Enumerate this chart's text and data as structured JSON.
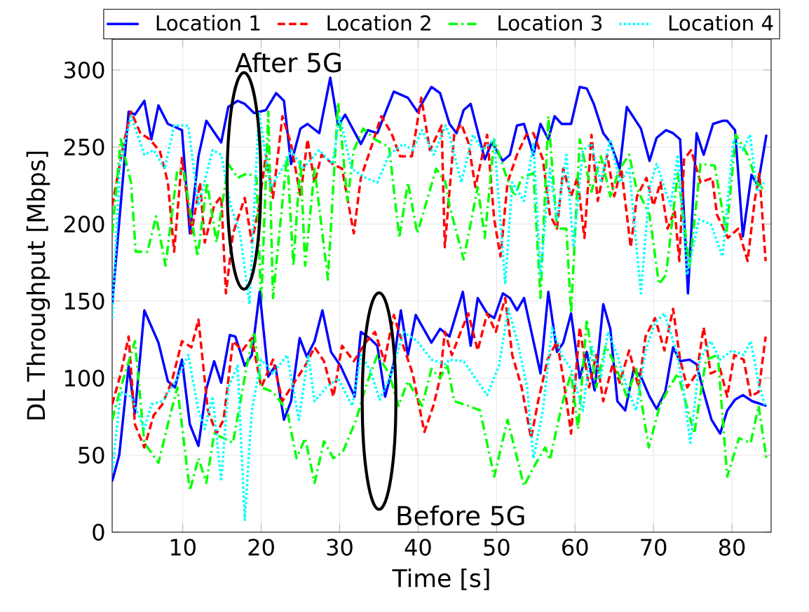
{
  "chart_data": {
    "type": "line",
    "xlabel": "Time [s]",
    "ylabel": "DL Throughput [Mbps]",
    "xlim": [
      1,
      85
    ],
    "ylim": [
      0,
      320
    ],
    "xticks": [
      10,
      20,
      30,
      40,
      50,
      60,
      70,
      80
    ],
    "yticks": [
      0,
      50,
      100,
      150,
      200,
      250,
      300
    ],
    "grid": true,
    "legend": "top",
    "marker": "none",
    "annotations": [
      "After 5G",
      "Before 5G"
    ],
    "series": [
      {
        "name": "Location 1",
        "color": "#0000ff",
        "line_style": "solid",
        "x": [
          1,
          3.1,
          3.9,
          5.1,
          6.0,
          6.9,
          8.1,
          9.9,
          10.9,
          12,
          13,
          14.9,
          15.8,
          17,
          17.9,
          19.1,
          20.6,
          21.9,
          22.9,
          23.8,
          25,
          25.9,
          27.4,
          28.8,
          29.8,
          30.7,
          32.7,
          33.6,
          34.8,
          36.9,
          38.7,
          39.9,
          41.7,
          42.8,
          44,
          44.9,
          45.8,
          46.7,
          48.5,
          49.4,
          50.8,
          51.7,
          52.6,
          53.5,
          54.7,
          55.6,
          56.6,
          57.4,
          58.3,
          59.5,
          60.6,
          61.5,
          62.4,
          63.6,
          64.5,
          65.7,
          66.6,
          68.4,
          69.5,
          70.4,
          71.6,
          72.5,
          73.4,
          74.4,
          75.5,
          76.4,
          77.6,
          78.8,
          79.4,
          80.4,
          81.4,
          82.5,
          83.3,
          84.4
        ],
        "values": [
          148,
          273,
          271,
          280,
          255,
          277,
          265,
          261,
          194,
          244,
          267,
          253,
          276,
          280,
          278,
          272,
          274,
          285,
          280,
          239,
          262,
          265,
          259,
          295,
          264,
          271,
          252,
          261,
          259,
          286,
          282,
          273,
          289,
          285,
          265,
          259,
          274,
          278,
          242,
          253,
          241,
          245,
          264,
          265,
          245,
          265,
          255,
          270,
          265,
          265,
          289,
          288,
          278,
          259,
          253,
          236,
          276,
          262,
          241,
          256,
          261,
          259,
          255,
          155,
          259,
          245,
          265,
          267,
          267,
          261,
          192,
          232,
          225,
          258
        ]
      },
      {
        "name": "Location 2",
        "color": "#ff0000",
        "line_style": "dashed",
        "x": [
          1,
          2.5,
          3.4,
          4.6,
          5.8,
          7.1,
          8.1,
          8.9,
          9.9,
          11.1,
          12.2,
          12.8,
          14,
          14.9,
          15.5,
          16.4,
          17.9,
          18.8,
          19.7,
          20.6,
          21.5,
          22.7,
          23.8,
          25,
          25.9,
          26.8,
          27.7,
          29.1,
          30.3,
          31.8,
          32.7,
          33.9,
          35.3,
          36.6,
          37.7,
          39.2,
          40.4,
          41.5,
          43,
          43.4,
          44.6,
          45.5,
          46.4,
          47.3,
          48.2,
          48.8,
          49.7,
          50.5,
          51.4,
          52.6,
          53.8,
          54.7,
          55.9,
          56.8,
          57.7,
          58.5,
          59.5,
          60.3,
          61.2,
          62.1,
          62.9,
          64.1,
          65,
          65.9,
          67.1,
          67.9,
          69.1,
          70,
          70.9,
          71.8,
          72.7,
          73.3,
          73.9,
          74.8,
          76,
          77.5,
          78.1,
          79.5,
          80.8,
          82,
          82.9,
          83.5,
          84.3
        ],
        "values": [
          212,
          253,
          273,
          259,
          255,
          247,
          227,
          182,
          243,
          194,
          227,
          188,
          212,
          218,
          155,
          194,
          217,
          188,
          211,
          245,
          217,
          270,
          252,
          218,
          255,
          227,
          245,
          239,
          236,
          194,
          230,
          248,
          270,
          259,
          244,
          244,
          282,
          248,
          264,
          185,
          258,
          265,
          253,
          224,
          245,
          258,
          203,
          179,
          227,
          245,
          258,
          259,
          242,
          206,
          197,
          236,
          218,
          230,
          191,
          258,
          215,
          245,
          218,
          236,
          185,
          218,
          230,
          212,
          227,
          197,
          209,
          176,
          242,
          248,
          227,
          230,
          206,
          191,
          197,
          176,
          215,
          233,
          176
        ]
      },
      {
        "name": "Location 3",
        "color": "#00ff00",
        "line_style": "dashdot",
        "x": [
          1,
          2.1,
          3.4,
          4,
          5.5,
          6.6,
          7.8,
          9.3,
          10.1,
          11.9,
          13.1,
          14.3,
          15.8,
          17,
          18.2,
          19.4,
          20,
          20.9,
          21.5,
          23.3,
          24.1,
          25,
          25.6,
          26.8,
          28.5,
          29.8,
          31,
          31.8,
          33,
          34.5,
          36.3,
          37.6,
          38.7,
          39.9,
          42.3,
          43.5,
          44,
          45.8,
          47.6,
          48.5,
          49.7,
          51.1,
          52.3,
          53.2,
          54.7,
          55.6,
          56.6,
          57.7,
          58.9,
          59.5,
          60.6,
          62.1,
          63.3,
          64.5,
          65.7,
          66.9,
          67.8,
          69.5,
          70.7,
          71.6,
          73.1,
          74.6,
          76,
          77.8,
          79.3,
          80.5,
          82,
          83.2,
          84.3
        ],
        "values": [
          194,
          255,
          227,
          182,
          182,
          205,
          173,
          235,
          235,
          179,
          227,
          188,
          239,
          230,
          233,
          230,
          148,
          273,
          152,
          245,
          173,
          242,
          173,
          236,
          164,
          279,
          215,
          248,
          262,
          255,
          250,
          191,
          227,
          194,
          236,
          227,
          212,
          177,
          224,
          191,
          255,
          233,
          218,
          230,
          233,
          152,
          270,
          197,
          197,
          142,
          255,
          221,
          244,
          218,
          236,
          245,
          224,
          206,
          161,
          167,
          233,
          173,
          239,
          238,
          194,
          258,
          245,
          227,
          221
        ]
      },
      {
        "name": "Location 4",
        "color": "#00ffff",
        "line_style": "dotted",
        "x": [
          1,
          2,
          3.4,
          5.1,
          6.3,
          7.7,
          8.9,
          10.7,
          12,
          13.8,
          14.9,
          16.1,
          17.3,
          18.5,
          19.7,
          21.2,
          22.7,
          23.8,
          25.3,
          27.4,
          29.1,
          30,
          31.5,
          33.3,
          34.8,
          36.3,
          38.1,
          39.3,
          40.5,
          42,
          43.5,
          44,
          45.5,
          47,
          48.2,
          49.7,
          51.1,
          52,
          53.5,
          54.7,
          55.6,
          56.8,
          57.7,
          58.9,
          59.8,
          61,
          62.1,
          63.3,
          64.5,
          65.7,
          66.9,
          68.4,
          69.5,
          70.4,
          72.2,
          73.1,
          74.3,
          75.8,
          77.3,
          78.8,
          80.2,
          81.4,
          82.3,
          83.2,
          84.1
        ],
        "values": [
          139,
          239,
          270,
          245,
          248,
          236,
          264,
          264,
          212,
          248,
          245,
          212,
          194,
          148,
          273,
          224,
          236,
          248,
          236,
          248,
          239,
          270,
          236,
          230,
          227,
          245,
          252,
          248,
          261,
          245,
          264,
          258,
          227,
          258,
          248,
          255,
          161,
          227,
          215,
          252,
          167,
          236,
          203,
          245,
          185,
          248,
          252,
          227,
          255,
          227,
          236,
          155,
          224,
          239,
          212,
          245,
          167,
          203,
          200,
          179,
          255,
          248,
          258,
          221,
          227
        ]
      },
      {
        "color": "#0000ff",
        "line_style": "solid",
        "x": [
          1,
          1.9,
          3.1,
          3.9,
          5.1,
          6.9,
          8.1,
          9,
          9.9,
          10.9,
          12,
          13,
          14,
          14.9,
          16,
          16.7,
          17.9,
          18.8,
          19.8,
          20.9,
          21.8,
          22.9,
          23.8,
          24.9,
          25.8,
          26.8,
          27.8,
          28.9,
          30.1,
          31.9,
          32.7,
          33.8,
          34.8,
          35.8,
          36.9,
          37.8,
          38.7,
          39.7,
          41.7,
          42.8,
          44,
          45.7,
          46.7,
          47.6,
          48.8,
          49.7,
          50.8,
          51.7,
          52.6,
          53.5,
          55.6,
          56.6,
          57.7,
          58.5,
          59.5,
          60.6,
          61.5,
          62.5,
          63.6,
          64.5,
          65.4,
          66.4,
          67.5,
          68.4,
          69.5,
          70.4,
          71.5,
          72.5,
          73.4,
          74.6,
          75.5,
          76.4,
          77.4,
          78.5,
          79.4,
          80.4,
          81.4,
          82.6,
          84.4
        ],
        "values": [
          33,
          50,
          108,
          77,
          144,
          123,
          98,
          94,
          112,
          70,
          56,
          93,
          111,
          97,
          128,
          127,
          108,
          115,
          156,
          101,
          108,
          73,
          85,
          126,
          114,
          124,
          144,
          117,
          108,
          88,
          130,
          126,
          121,
          88,
          110,
          144,
          115,
          141,
          123,
          132,
          127,
          156,
          121,
          152,
          142,
          139,
          155,
          152,
          144,
          152,
          103,
          156,
          117,
          123,
          142,
          100,
          117,
          92,
          148,
          132,
          85,
          79,
          106,
          101,
          88,
          80,
          91,
          120,
          111,
          112,
          109,
          91,
          73,
          64,
          79,
          86,
          89,
          85,
          82
        ]
      },
      {
        "color": "#ff0000",
        "line_style": "dashed",
        "x": [
          1,
          2.1,
          3.1,
          3.9,
          5.1,
          6.3,
          7.4,
          8.6,
          9.9,
          11.1,
          12,
          13.2,
          14.3,
          15.2,
          16.4,
          17.6,
          18.8,
          20,
          21.5,
          22.7,
          23.8,
          25.6,
          26.8,
          28,
          29.2,
          30.3,
          31.8,
          33.3,
          34.5,
          35.7,
          36.9,
          38.1,
          39.3,
          40.8,
          42,
          42.8,
          43.4,
          44.3,
          45.2,
          46.4,
          47.6,
          48.8,
          49.9,
          51.1,
          52,
          53.2,
          54.4,
          55.3,
          56.5,
          57.7,
          58.5,
          59.5,
          60.6,
          61.8,
          62.7,
          63.6,
          64.8,
          65.7,
          66.9,
          68.1,
          69,
          70.2,
          71.4,
          72.5,
          73.4,
          74.3,
          75.5,
          76.4,
          77.3,
          78.5,
          79.4,
          80.3,
          81.5,
          82.4,
          83.4,
          84.3
        ],
        "values": [
          83,
          103,
          127,
          70,
          55,
          76,
          83,
          98,
          124,
          120,
          138,
          79,
          64,
          73,
          124,
          118,
          126,
          94,
          112,
          85,
          94,
          108,
          120,
          111,
          88,
          121,
          111,
          123,
          130,
          111,
          141,
          121,
          103,
          65,
          83,
          100,
          130,
          115,
          127,
          142,
          118,
          142,
          130,
          152,
          115,
          94,
          61,
          85,
          112,
          124,
          100,
          64,
          133,
          94,
          115,
          85,
          109,
          97,
          118,
          94,
          127,
          139,
          118,
          145,
          112,
          94,
          103,
          133,
          103,
          106,
          88,
          115,
          112,
          88,
          91,
          127
        ]
      },
      {
        "color": "#00ff00",
        "line_style": "dashdot",
        "x": [
          1,
          2.1,
          3.9,
          5.1,
          6.9,
          8.1,
          9.3,
          10.9,
          12,
          13,
          14,
          15.2,
          16.4,
          18.2,
          19.1,
          20,
          21.5,
          23.3,
          24.5,
          25.6,
          26.8,
          28,
          29.2,
          30.4,
          32.1,
          33.3,
          34.8,
          36.3,
          37.5,
          38.7,
          40.5,
          41.7,
          42.8,
          43.7,
          44.6,
          46.4,
          47.9,
          49.7,
          51.4,
          53.5,
          54.7,
          56.2,
          56.8,
          58.3,
          59.5,
          60.4,
          61.5,
          62.7,
          63.9,
          65.1,
          66.6,
          67.8,
          69.4,
          70.8,
          72,
          73.1,
          75.2,
          76.7,
          78.2,
          79.4,
          80.9,
          82.4,
          83.4,
          84.4
        ],
        "values": [
          73,
          94,
          124,
          58,
          45,
          70,
          94,
          27,
          48,
          32,
          64,
          61,
          58,
          109,
          130,
          94,
          91,
          79,
          48,
          61,
          32,
          59,
          48,
          52,
          73,
          94,
          115,
          103,
          82,
          98,
          82,
          106,
          100,
          109,
          85,
          82,
          79,
          36,
          73,
          30,
          42,
          55,
          47,
          82,
          103,
          67,
          138,
          94,
          121,
          109,
          88,
          106,
          55,
          82,
          94,
          103,
          64,
          112,
          115,
          36,
          61,
          58,
          82,
          48
        ]
      },
      {
        "color": "#00ffff",
        "line_style": "dotted",
        "x": [
          1,
          2.1,
          3.4,
          5.1,
          6,
          7.4,
          9,
          10.7,
          12,
          12.8,
          13.8,
          14.9,
          15.8,
          17,
          17.9,
          18.8,
          20,
          21.5,
          23.3,
          24.8,
          26,
          26.8,
          28.3,
          29.8,
          31.6,
          32.7,
          33.9,
          35.1,
          36.6,
          38.1,
          39.9,
          41.7,
          43.5,
          44,
          45.8,
          47.3,
          48.8,
          50.3,
          51.5,
          52.7,
          53.9,
          54.7,
          55.9,
          57.1,
          58.3,
          59.5,
          61,
          62.1,
          63.3,
          64.2,
          65.4,
          66.6,
          67.8,
          69,
          70.2,
          71.4,
          72.9,
          73.8,
          74.7,
          75.9,
          77.3,
          78.5,
          80,
          81.5,
          82.4,
          83.4,
          84.2
        ],
        "values": [
          39,
          91,
          88,
          67,
          83,
          85,
          97,
          115,
          79,
          67,
          88,
          33,
          94,
          108,
          8,
          79,
          112,
          103,
          115,
          73,
          115,
          85,
          94,
          100,
          82,
          115,
          105,
          86,
          103,
          130,
          124,
          112,
          109,
          112,
          111,
          100,
          89,
          108,
          145,
          123,
          94,
          48,
          79,
          133,
          115,
          106,
          79,
          121,
          100,
          130,
          115,
          94,
          79,
          118,
          136,
          142,
          118,
          94,
          58,
          112,
          124,
          112,
          118,
          115,
          124,
          97,
          82
        ]
      }
    ]
  }
}
